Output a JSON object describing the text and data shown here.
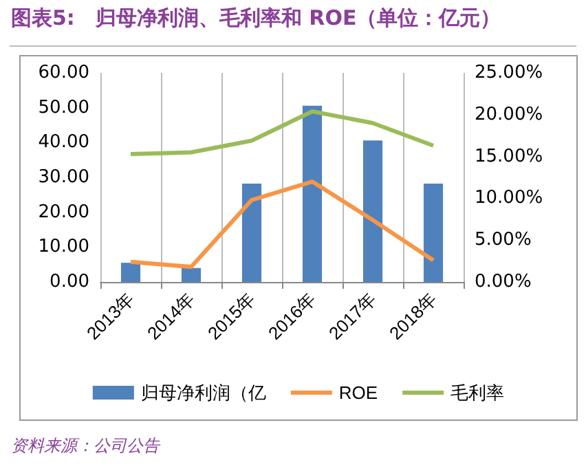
{
  "chart_data": {
    "type": "bar",
    "title": "图表5:　归母净利润、毛利率和 ROE（单位：亿元）",
    "categories": [
      "2013年",
      "2014年",
      "2015年",
      "2016年",
      "2017年",
      "2018年"
    ],
    "series": [
      {
        "name": "归母净利润（亿",
        "color": "#4f81bd",
        "values": [
          5.5,
          4.0,
          28.2,
          50.6,
          40.6,
          28.2
        ]
      },
      {
        "name": "ROE",
        "type": "line",
        "axis": "y2",
        "color": "#f79646",
        "values": [
          2.4,
          1.8,
          9.8,
          12.0,
          7.4,
          2.6
        ]
      },
      {
        "name": "毛利率",
        "type": "line",
        "axis": "y2",
        "color": "#9bbb59",
        "values": [
          15.3,
          15.5,
          16.9,
          20.4,
          19.0,
          16.3
        ]
      }
    ],
    "ylim": [
      0,
      60
    ],
    "yticks": [
      {
        "value": 0,
        "label": "0.00"
      },
      {
        "value": 10,
        "label": "10.00"
      },
      {
        "value": 20,
        "label": "20.00"
      },
      {
        "value": 30,
        "label": "30.00"
      },
      {
        "value": 40,
        "label": "40.00"
      },
      {
        "value": 50,
        "label": "50.00"
      },
      {
        "value": 60,
        "label": "60.00"
      }
    ],
    "y2lim": [
      0,
      25
    ],
    "y2ticks": [
      {
        "value": 0,
        "label": "0.00%"
      },
      {
        "value": 5,
        "label": "5.00%"
      },
      {
        "value": 10,
        "label": "10.00%"
      },
      {
        "value": 15,
        "label": "15.00%"
      },
      {
        "value": 20,
        "label": "20.00%"
      },
      {
        "value": 25,
        "label": "25.00%"
      }
    ],
    "grid": "x",
    "legend": "bottom",
    "marker": "none",
    "line_style": "solid",
    "annotations": [
      "资料来源：公司公告"
    ]
  }
}
